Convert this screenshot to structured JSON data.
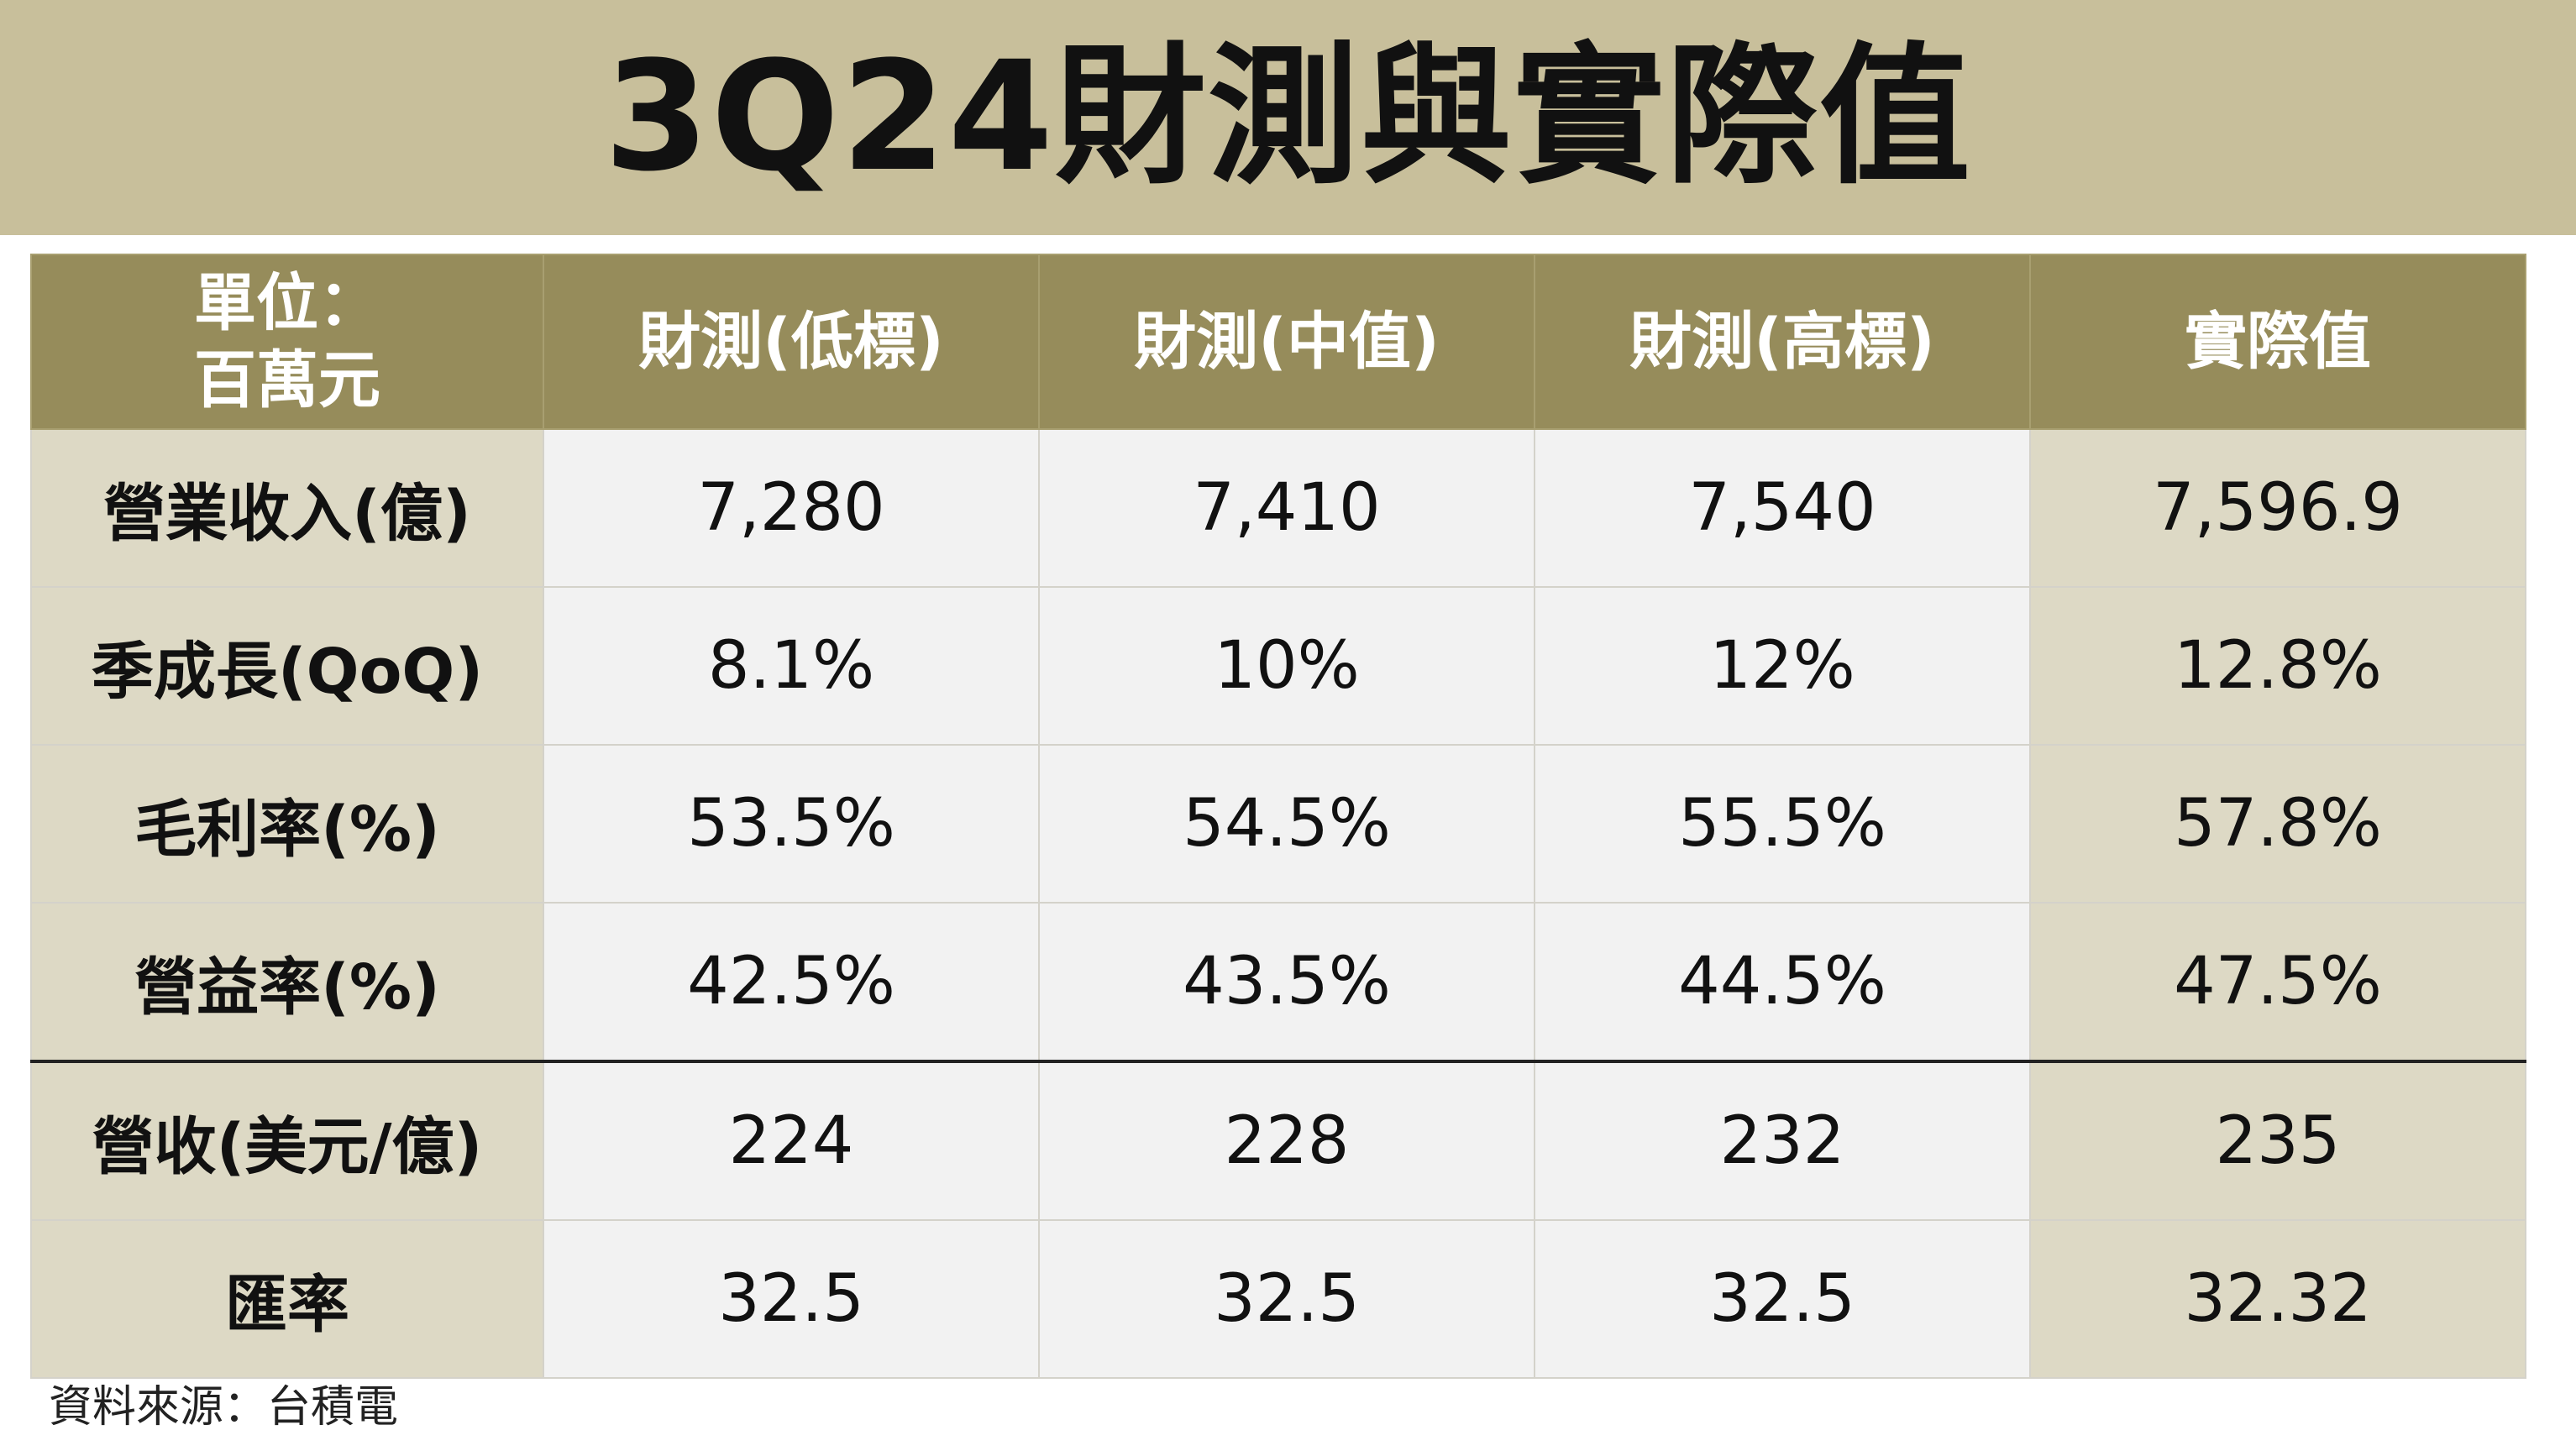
{
  "title": "3Q24財測與實際值",
  "table": {
    "unit_label_line1": "單位：",
    "unit_label_line2": "百萬元",
    "headers": [
      "財測(低標)",
      "財測(中值)",
      "財測(高標)",
      "實際值"
    ],
    "rows": [
      {
        "label": "營業收入(億)",
        "values": [
          "7,280",
          "7,410",
          "7,540",
          "7,596.9"
        ]
      },
      {
        "label": "季成長(QoQ)",
        "values": [
          "8.1%",
          "10%",
          "12%",
          "12.8%"
        ]
      },
      {
        "label": "毛利率(%)",
        "values": [
          "53.5%",
          "54.5%",
          "55.5%",
          "57.8%"
        ]
      },
      {
        "label": "營益率(%)",
        "values": [
          "42.5%",
          "43.5%",
          "44.5%",
          "47.5%"
        ]
      },
      {
        "label": "營收(美元/億)",
        "values": [
          "224",
          "228",
          "232",
          "235"
        ]
      },
      {
        "label": "匯率",
        "values": [
          "32.5",
          "32.5",
          "32.5",
          "32.32"
        ]
      }
    ]
  },
  "source": "資料來源：台積電",
  "colors": {
    "banner": "#c8bf9b",
    "header": "#968c5b",
    "row_label": "#ddd9c5",
    "cell": "#f2f2f2"
  }
}
